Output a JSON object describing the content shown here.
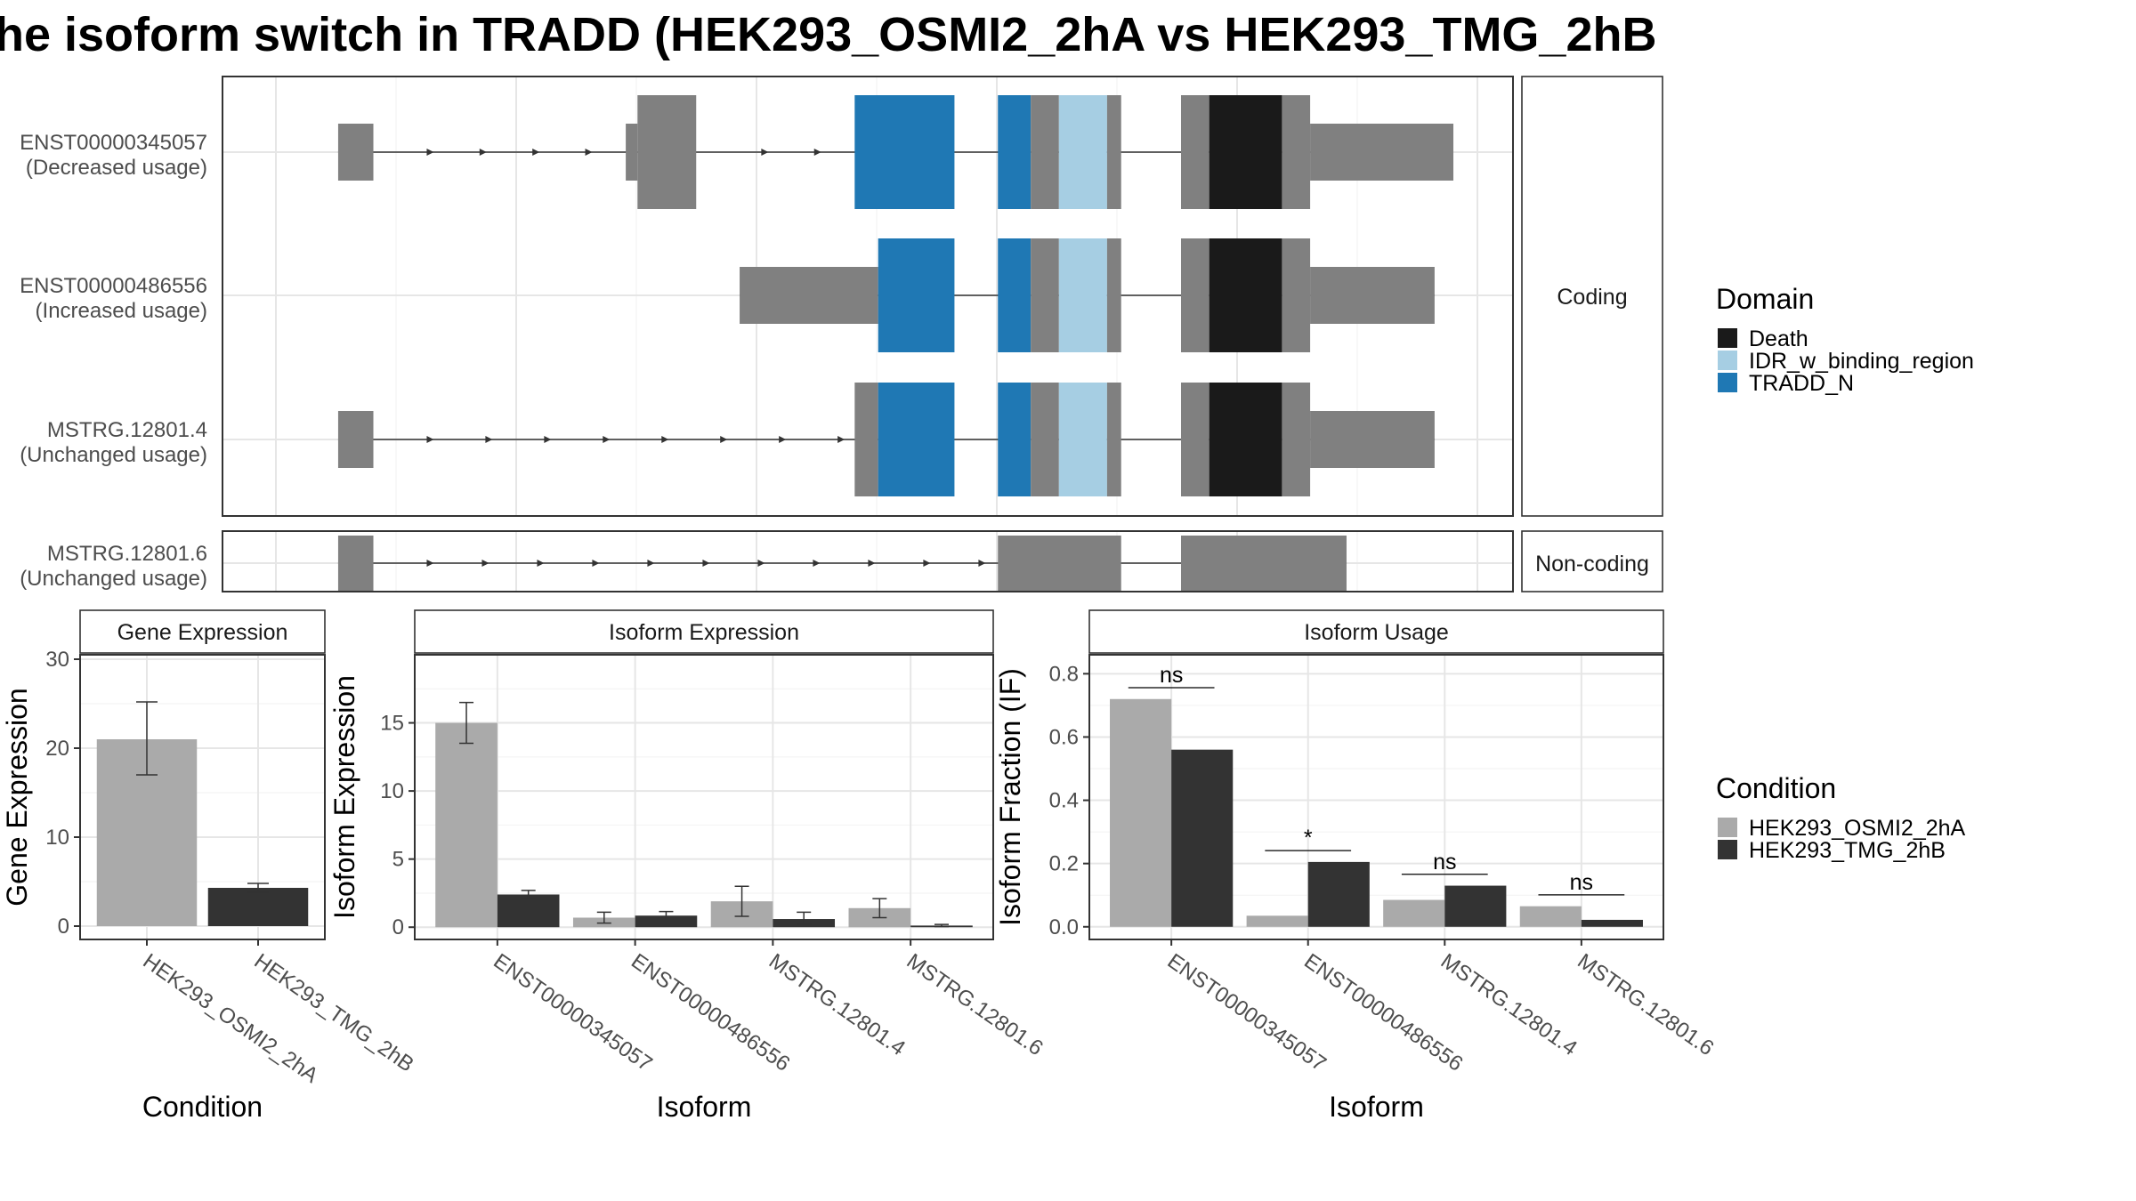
{
  "title": "he isoform switch in TRADD (HEK293_OSMI2_2hA vs HEK293_TMG_2hB",
  "colors": {
    "exon": "#808080",
    "Death": "#1a1a1a",
    "IDR_w_binding_region": "#a6cee3",
    "TRADD_N": "#1f78b4",
    "cond_a": "#aaaaaa",
    "cond_b": "#333333"
  },
  "structure": {
    "facet_coding": "Coding",
    "facet_noncoding": "Non-coding",
    "transcripts": [
      {
        "id": "ENST00000345057",
        "usage": "(Decreased usage)",
        "group": "coding",
        "exons": [
          [
            0.05,
            0.08,
            "thin"
          ],
          [
            0.295,
            0.305,
            "thin"
          ],
          [
            0.305,
            0.355,
            "thick"
          ],
          [
            0.49,
            0.575,
            "TRADD_N"
          ],
          [
            0.612,
            0.64,
            "TRADD_N"
          ],
          [
            0.64,
            0.664,
            "thick"
          ],
          [
            0.664,
            0.705,
            "IDR_w_binding_region"
          ],
          [
            0.705,
            0.717,
            "thick"
          ],
          [
            0.768,
            0.792,
            "thick"
          ],
          [
            0.792,
            0.854,
            "Death"
          ],
          [
            0.854,
            0.878,
            "thick"
          ],
          [
            0.878,
            1.0,
            "thin"
          ]
        ],
        "intron_arrows": [
          0.13,
          0.175,
          0.22,
          0.265,
          0.415,
          0.46
        ]
      },
      {
        "id": "ENST00000486556",
        "usage": "(Increased usage)",
        "group": "coding",
        "exons": [
          [
            0.392,
            0.51,
            "thin"
          ],
          [
            0.51,
            0.575,
            "TRADD_N"
          ],
          [
            0.612,
            0.64,
            "TRADD_N"
          ],
          [
            0.64,
            0.664,
            "thick"
          ],
          [
            0.664,
            0.705,
            "IDR_w_binding_region"
          ],
          [
            0.705,
            0.717,
            "thick"
          ],
          [
            0.768,
            0.792,
            "thick"
          ],
          [
            0.792,
            0.854,
            "Death"
          ],
          [
            0.854,
            0.878,
            "thick"
          ],
          [
            0.878,
            0.984,
            "thin"
          ]
        ],
        "intron_arrows": []
      },
      {
        "id": "MSTRG.12801.4",
        "usage": "(Unchanged usage)",
        "group": "coding",
        "exons": [
          [
            0.05,
            0.08,
            "thin"
          ],
          [
            0.49,
            0.51,
            "thick"
          ],
          [
            0.51,
            0.575,
            "TRADD_N"
          ],
          [
            0.612,
            0.64,
            "TRADD_N"
          ],
          [
            0.64,
            0.664,
            "thick"
          ],
          [
            0.664,
            0.705,
            "IDR_w_binding_region"
          ],
          [
            0.705,
            0.717,
            "thick"
          ],
          [
            0.768,
            0.792,
            "thick"
          ],
          [
            0.792,
            0.854,
            "Death"
          ],
          [
            0.854,
            0.878,
            "thick"
          ],
          [
            0.878,
            0.984,
            "thin"
          ]
        ],
        "intron_arrows": [
          0.13,
          0.18,
          0.23,
          0.28,
          0.33,
          0.38,
          0.43,
          0.48
        ]
      },
      {
        "id": "MSTRG.12801.6",
        "usage": "(Unchanged usage)",
        "group": "noncoding",
        "exons": [
          [
            0.05,
            0.08,
            "thick"
          ],
          [
            0.612,
            0.717,
            "thick"
          ],
          [
            0.768,
            0.909,
            "thick"
          ]
        ],
        "intron_arrows": [
          0.13,
          0.177,
          0.224,
          0.271,
          0.318,
          0.365,
          0.412,
          0.459,
          0.506,
          0.553,
          0.6
        ]
      }
    ]
  },
  "legend": {
    "domain_title": "Domain",
    "domain_items": [
      "Death",
      "IDR_w_binding_region",
      "TRADD_N"
    ],
    "condition_title": "Condition",
    "condition_items": [
      "HEK293_OSMI2_2hA",
      "HEK293_TMG_2hB"
    ]
  },
  "chart_data": [
    {
      "type": "bar",
      "title": "Gene Expression",
      "xlabel": "Condition",
      "ylabel": "Gene Expression",
      "categories": [
        "HEK293_OSMI2_2hA",
        "HEK293_TMG_2hB"
      ],
      "values": [
        21.0,
        4.3
      ],
      "err_low": [
        17.0,
        3.8
      ],
      "err_high": [
        25.2,
        4.8
      ],
      "ylim": [
        -1.5,
        30.5
      ],
      "yticks": [
        0,
        10,
        20,
        30
      ]
    },
    {
      "type": "bar",
      "title": "Isoform Expression",
      "xlabel": "Isoform",
      "ylabel": "Isoform Expression",
      "categories": [
        "ENST00000345057",
        "ENST00000486556",
        "MSTRG.12801.4",
        "MSTRG.12801.6"
      ],
      "series": [
        {
          "name": "HEK293_OSMI2_2hA",
          "values": [
            15.0,
            0.7,
            1.9,
            1.4
          ],
          "err_low": [
            13.5,
            0.3,
            0.8,
            0.7
          ],
          "err_high": [
            16.5,
            1.1,
            3.0,
            2.1
          ]
        },
        {
          "name": "HEK293_TMG_2hB",
          "values": [
            2.4,
            0.85,
            0.6,
            0.12
          ],
          "err_low": [
            2.1,
            0.55,
            0.2,
            0.05
          ],
          "err_high": [
            2.7,
            1.15,
            1.1,
            0.2
          ]
        }
      ],
      "ylim": [
        -0.9,
        20.0
      ],
      "yticks": [
        0,
        5,
        10,
        15
      ]
    },
    {
      "type": "bar",
      "title": "Isoform Usage",
      "xlabel": "Isoform",
      "ylabel": "Isoform Fraction (IF)",
      "categories": [
        "ENST00000345057",
        "ENST00000486556",
        "MSTRG.12801.4",
        "MSTRG.12801.6"
      ],
      "series": [
        {
          "name": "HEK293_OSMI2_2hA",
          "values": [
            0.72,
            0.035,
            0.085,
            0.065
          ]
        },
        {
          "name": "HEK293_TMG_2hB",
          "values": [
            0.56,
            0.205,
            0.13,
            0.022
          ]
        }
      ],
      "significance": [
        "ns",
        "*",
        "ns",
        "ns"
      ],
      "ylim": [
        -0.04,
        0.86
      ],
      "yticks": [
        0.0,
        0.2,
        0.4,
        0.6,
        0.8
      ],
      "ytick_labels": [
        "0.0",
        "0.2",
        "0.4",
        "0.6",
        "0.8"
      ]
    }
  ]
}
